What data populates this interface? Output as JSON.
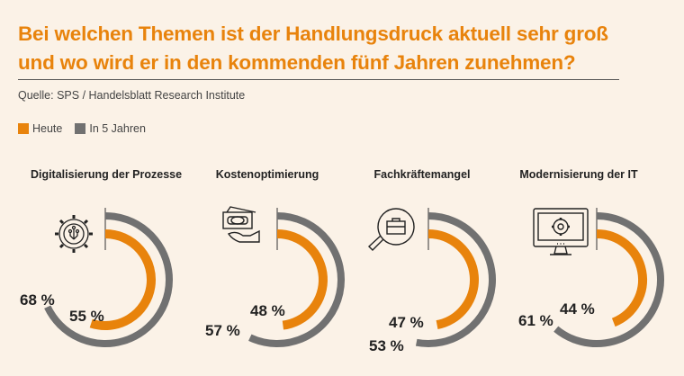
{
  "title_line1": "Bei welchen Themen ist der Handlungsdruck aktuell sehr groß",
  "title_line2": "und wo wird er in den kommenden fünf Jahren zunehmen?",
  "source": "Quelle: SPS / Handelsblatt Research Institute",
  "colors": {
    "today": "#e8830c",
    "in5": "#717171",
    "background": "#fbf2e7"
  },
  "chart_data": {
    "type": "radial-bar",
    "legend": [
      {
        "name": "Heute",
        "color": "#e8830c"
      },
      {
        "name": "In 5 Jahren",
        "color": "#717171"
      }
    ],
    "legend_position": "top-left",
    "unit": "%",
    "categories": [
      {
        "label": "Digitalisierung der Prozesse",
        "icon": "gear-circuit-icon",
        "heute": 55,
        "in5": 68,
        "heute_label": "55 %",
        "in5_label": "68 %"
      },
      {
        "label": "Kostenoptimierung",
        "icon": "money-hand-icon",
        "heute": 48,
        "in5": 57,
        "heute_label": "48 %",
        "in5_label": "57 %"
      },
      {
        "label": "Fachkräftemangel",
        "icon": "magnifier-briefcase-icon",
        "heute": 47,
        "in5": 53,
        "heute_label": "47 %",
        "in5_label": "53 %"
      },
      {
        "label": "Modernisierung der IT",
        "icon": "monitor-gear-icon",
        "heute": 44,
        "in5": 61,
        "heute_label": "44 %",
        "in5_label": "61 %"
      }
    ]
  }
}
